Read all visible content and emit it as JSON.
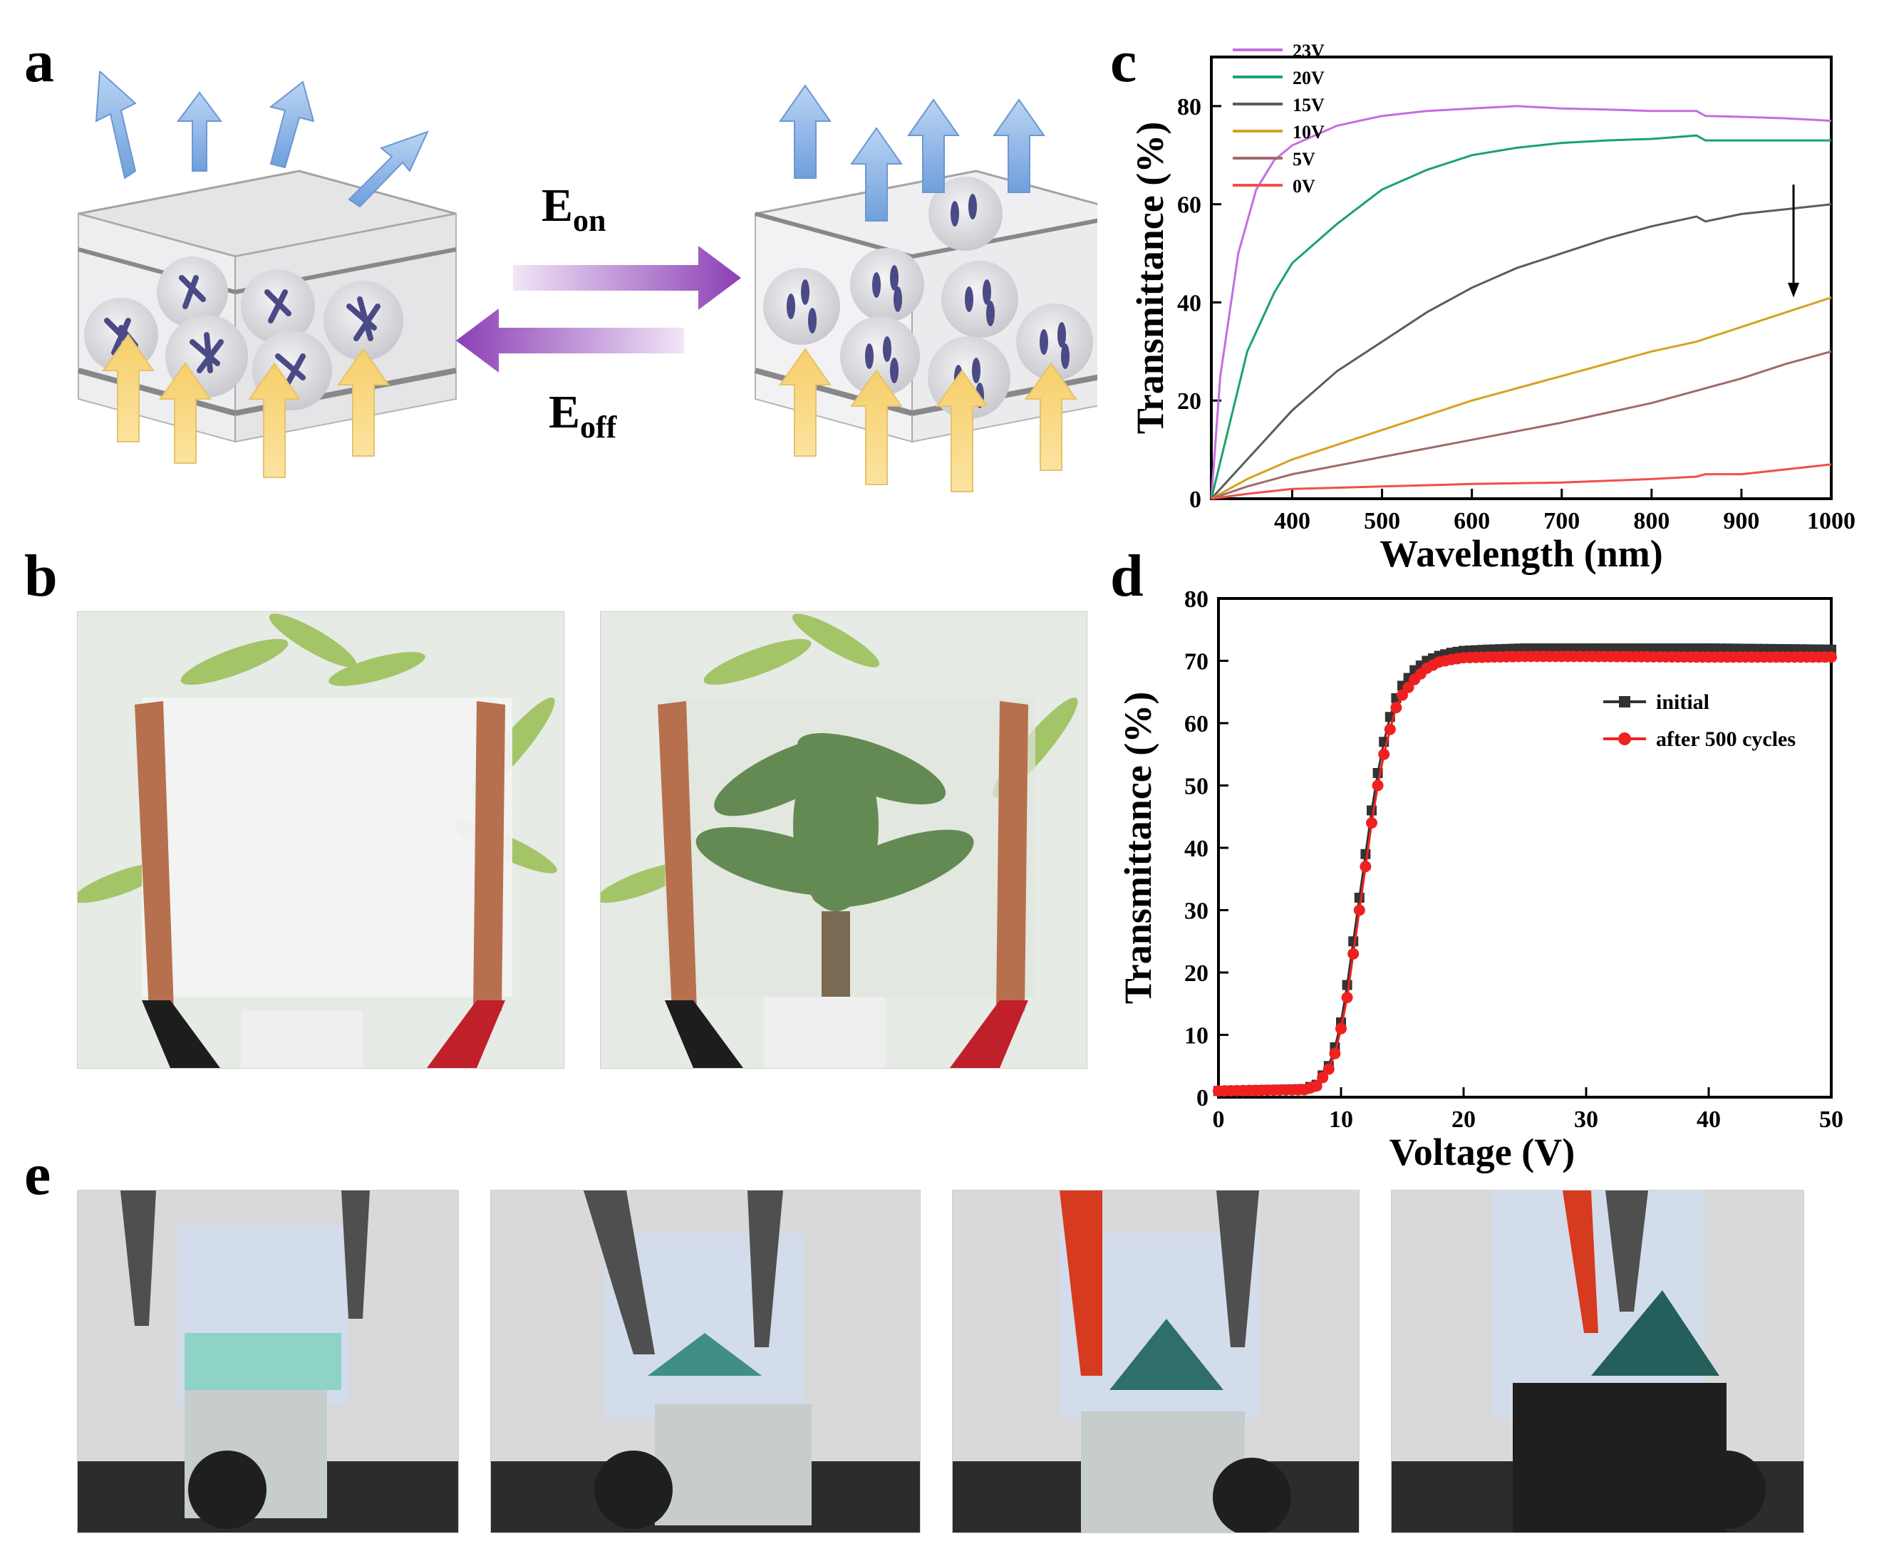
{
  "panels": {
    "a": "a",
    "b": "b",
    "c": "c",
    "d": "d",
    "e": "e"
  },
  "schematic": {
    "eon": "E",
    "eon_sub": "on",
    "eoff": "E",
    "eoff_sub": "off"
  },
  "chart_data": [
    {
      "id": "c",
      "type": "line",
      "xlabel": "Wavelength (nm)",
      "ylabel": "Transmittance (%)",
      "xlim": [
        310,
        1000
      ],
      "ylim": [
        0,
        90
      ],
      "xticks": [
        400,
        500,
        600,
        700,
        800,
        900,
        1000
      ],
      "yticks": [
        0,
        20,
        40,
        60,
        80
      ],
      "legend_position": "top-left",
      "annotation": "downward arrow indicating decreasing voltage",
      "series": [
        {
          "name": "23V",
          "color": "#c46ee0",
          "x": [
            310,
            320,
            340,
            360,
            380,
            400,
            450,
            500,
            550,
            600,
            650,
            700,
            750,
            800,
            850,
            860,
            900,
            950,
            1000
          ],
          "y": [
            0,
            25,
            50,
            63,
            69,
            72,
            76,
            78,
            79,
            79.5,
            80,
            79.5,
            79.3,
            79,
            79,
            78,
            77.8,
            77.5,
            77
          ]
        },
        {
          "name": "20V",
          "color": "#1aa36a",
          "x": [
            310,
            330,
            350,
            380,
            400,
            450,
            500,
            550,
            600,
            650,
            700,
            750,
            800,
            850,
            860,
            900,
            950,
            1000
          ],
          "y": [
            0,
            15,
            30,
            42,
            48,
            56,
            63,
            67,
            70,
            71.5,
            72.5,
            73,
            73.3,
            74,
            73,
            73,
            73,
            73
          ]
        },
        {
          "name": "15V",
          "color": "#5c5c5c",
          "x": [
            310,
            350,
            400,
            450,
            500,
            550,
            600,
            650,
            700,
            750,
            800,
            850,
            860,
            900,
            950,
            1000
          ],
          "y": [
            0,
            8,
            18,
            26,
            32,
            38,
            43,
            47,
            50,
            53,
            55.5,
            57.5,
            56.5,
            58,
            59,
            60
          ]
        },
        {
          "name": "10V",
          "color": "#d9a021",
          "x": [
            310,
            350,
            400,
            500,
            600,
            700,
            800,
            850,
            900,
            950,
            1000
          ],
          "y": [
            0,
            4,
            8,
            14,
            20,
            25,
            30,
            32,
            35,
            38,
            41
          ]
        },
        {
          "name": "5V",
          "color": "#a06a6a",
          "x": [
            310,
            350,
            400,
            500,
            600,
            700,
            800,
            850,
            900,
            950,
            1000
          ],
          "y": [
            0,
            2.5,
            5,
            8.5,
            12,
            15.5,
            19.5,
            22,
            24.5,
            27.5,
            30
          ]
        },
        {
          "name": "0V",
          "color": "#f0504a",
          "x": [
            310,
            350,
            400,
            500,
            600,
            700,
            800,
            850,
            860,
            900,
            950,
            1000
          ],
          "y": [
            0,
            1,
            2,
            2.5,
            3,
            3.3,
            4,
            4.5,
            5,
            5,
            6,
            7
          ]
        }
      ]
    },
    {
      "id": "d",
      "type": "line",
      "xlabel": "Voltage (V)",
      "ylabel": "Transmittance (%)",
      "xlim": [
        0,
        50
      ],
      "ylim": [
        0,
        80
      ],
      "xticks": [
        0,
        10,
        20,
        30,
        40,
        50
      ],
      "yticks": [
        0,
        10,
        20,
        30,
        40,
        50,
        60,
        70,
        80
      ],
      "legend_position": "right",
      "series": [
        {
          "name": "initial",
          "color": "#333333",
          "marker": "square",
          "x": [
            0,
            7,
            8,
            9,
            9.5,
            10,
            10.5,
            11,
            11.5,
            12,
            12.5,
            13,
            13.5,
            14,
            14.5,
            15,
            16,
            17,
            18,
            19,
            20,
            22,
            25,
            30,
            40,
            50
          ],
          "y": [
            1,
            1.3,
            2,
            5,
            8,
            12,
            18,
            25,
            32,
            39,
            46,
            52,
            57,
            61,
            64,
            66,
            68.5,
            70,
            70.8,
            71.3,
            71.6,
            71.8,
            72,
            72,
            72,
            71.8
          ]
        },
        {
          "name": "after 500 cycles",
          "color": "#f02020",
          "marker": "circle",
          "x": [
            0,
            7,
            8,
            9,
            9.5,
            10,
            10.5,
            11,
            11.5,
            12,
            12.5,
            13,
            13.5,
            14,
            14.5,
            15,
            16,
            17,
            18,
            19,
            20,
            22,
            25,
            30,
            40,
            50
          ],
          "y": [
            1,
            1.2,
            1.8,
            4.5,
            7,
            11,
            16,
            23,
            30,
            37,
            44,
            50,
            55,
            59,
            62.5,
            64.5,
            67,
            68.8,
            69.8,
            70.2,
            70.5,
            70.6,
            70.7,
            70.7,
            70.6,
            70.6
          ]
        }
      ]
    }
  ]
}
